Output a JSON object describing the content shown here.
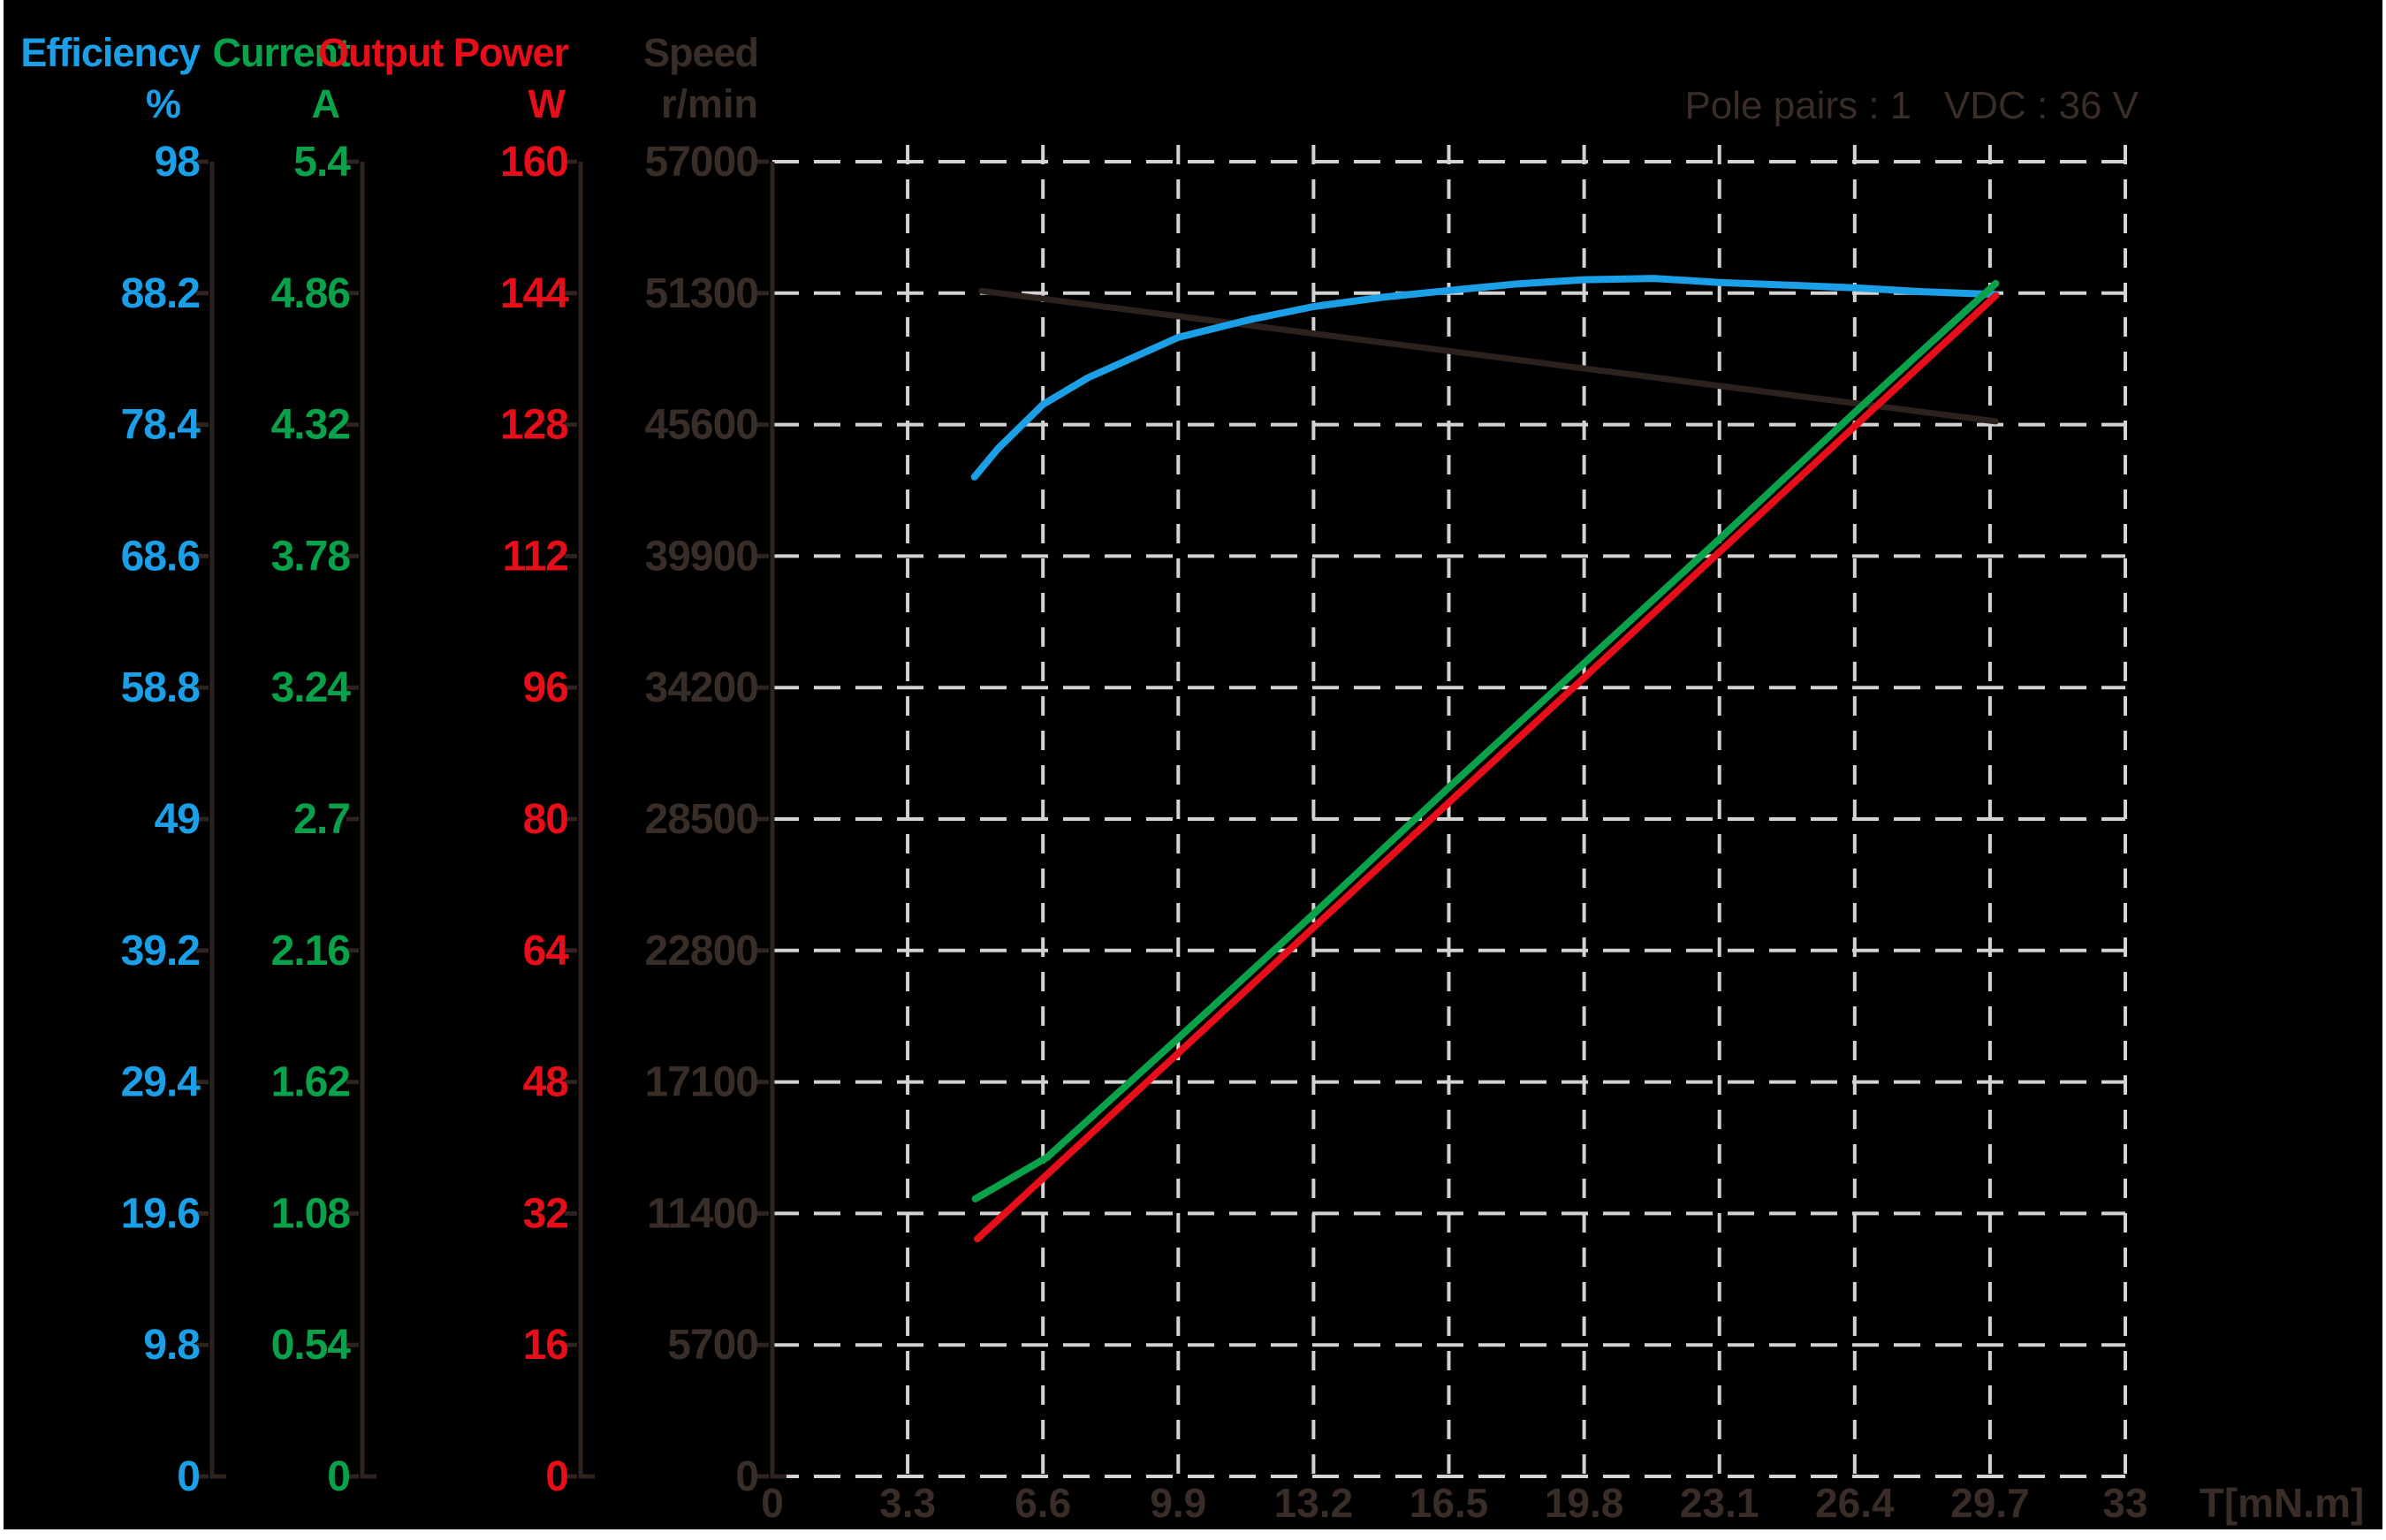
{
  "annotation": {
    "text": "Pole pairs : 1   VDC : 36 V"
  },
  "chart_data": {
    "type": "line",
    "title": "",
    "grid": true,
    "background_color": "#000000",
    "grid_color": "#D3D3D3",
    "x_axis": {
      "label": "T[mN.m]",
      "min": 0,
      "max": 33,
      "ticks": [
        0,
        3.3,
        6.6,
        9.9,
        13.2,
        16.5,
        19.8,
        23.1,
        26.4,
        29.7,
        33
      ],
      "color": "#3A2D27"
    },
    "y_axes": [
      {
        "id": "efficiency",
        "title": "Efficiency",
        "unit": "%",
        "color": "#1B9FE6",
        "min": 0,
        "max": 98,
        "ticks": [
          98,
          88.2,
          78.4,
          68.6,
          58.8,
          49,
          39.2,
          29.4,
          19.6,
          9.8,
          0
        ]
      },
      {
        "id": "current",
        "title": "Current",
        "unit": "A",
        "color": "#0AA14B",
        "min": 0,
        "max": 5.4,
        "ticks": [
          5.4,
          4.86,
          4.32,
          3.78,
          3.24,
          2.7,
          2.16,
          1.62,
          1.08,
          0.54,
          0
        ]
      },
      {
        "id": "power",
        "title": "Output Power",
        "unit": "W",
        "color": "#E60E19",
        "min": 0,
        "max": 160,
        "ticks": [
          160,
          144,
          128,
          112,
          96,
          80,
          64,
          48,
          32,
          16,
          0
        ]
      },
      {
        "id": "speed",
        "title": "Speed",
        "unit": "r/min",
        "color": "#392D27",
        "min": 0,
        "max": 57000,
        "ticks": [
          57000,
          51300,
          45600,
          39900,
          34200,
          28500,
          22800,
          17100,
          11400,
          5700,
          0
        ]
      }
    ],
    "series": [
      {
        "id": "speed",
        "axis": "speed",
        "name": "Speed",
        "color": "#2B211D",
        "width": 7,
        "points": [
          [
            5.1,
            51400
          ],
          [
            12,
            49820
          ],
          [
            20,
            47990
          ],
          [
            29.84,
            45740
          ]
        ]
      },
      {
        "id": "efficiency",
        "axis": "efficiency",
        "name": "Efficiency",
        "color": "#1B9FE6",
        "width": 8,
        "points": [
          [
            4.93,
            74.5
          ],
          [
            5.5,
            76.6
          ],
          [
            6.6,
            79.9
          ],
          [
            7.7,
            81.9
          ],
          [
            9.9,
            84.9
          ],
          [
            11.6,
            86.2
          ],
          [
            13.2,
            87.2
          ],
          [
            14.9,
            87.9
          ],
          [
            16.5,
            88.4
          ],
          [
            18.2,
            88.9
          ],
          [
            19.8,
            89.2
          ],
          [
            21.5,
            89.3
          ],
          [
            23.1,
            89.0
          ],
          [
            24.8,
            88.8
          ],
          [
            26.4,
            88.6
          ],
          [
            28.1,
            88.3
          ],
          [
            29.84,
            88.1
          ]
        ]
      },
      {
        "id": "current",
        "axis": "current",
        "name": "Current",
        "color": "#0AA14B",
        "width": 8,
        "points": [
          [
            4.95,
            1.14
          ],
          [
            6.7,
            1.31
          ],
          [
            9.9,
            1.8
          ],
          [
            13.2,
            2.31
          ],
          [
            16.5,
            2.83
          ],
          [
            19.8,
            3.34
          ],
          [
            23.1,
            3.85
          ],
          [
            26.4,
            4.37
          ],
          [
            29.84,
            4.9
          ]
        ]
      },
      {
        "id": "power",
        "axis": "power",
        "name": "Output Power",
        "color": "#E60E19",
        "width": 8,
        "points": [
          [
            5.0,
            28.9
          ],
          [
            9.9,
            51.5
          ],
          [
            13.2,
            66.8
          ],
          [
            16.5,
            82.0
          ],
          [
            19.8,
            97.2
          ],
          [
            23.1,
            112.5
          ],
          [
            26.4,
            127.8
          ],
          [
            29.84,
            143.7
          ]
        ]
      }
    ]
  }
}
